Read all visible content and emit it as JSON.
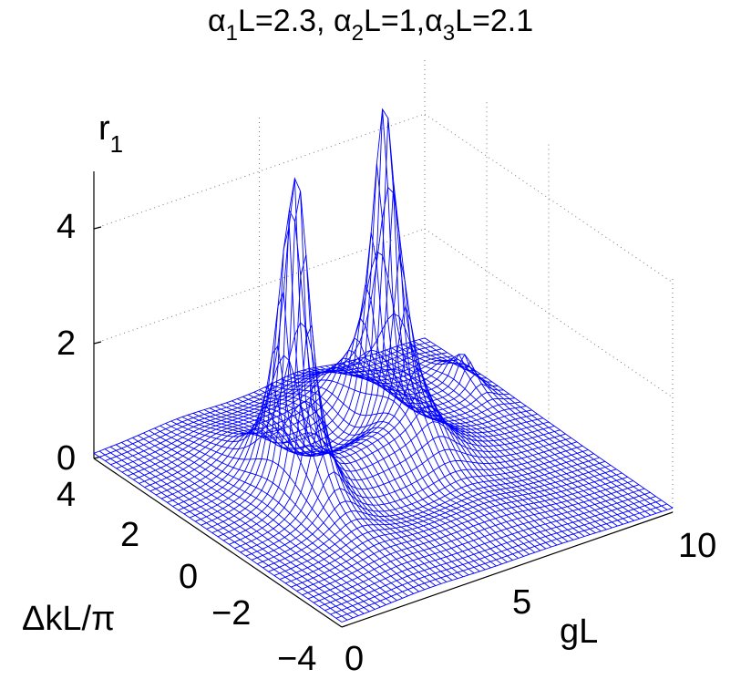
{
  "chart_data": {
    "type": "surface-mesh",
    "title_parts": [
      "α",
      "1",
      "L=2.3, ",
      "α",
      "2",
      "L=1,",
      "α",
      "3",
      "L=2.1"
    ],
    "zlabel_parts": [
      "r",
      "1"
    ],
    "xlabel": "gL",
    "ylabel": "ΔkL/π",
    "xlim": [
      0,
      10
    ],
    "ylim": [
      -4,
      4
    ],
    "zlim": [
      0,
      5
    ],
    "xticks": [
      "0",
      "5",
      "10"
    ],
    "yticks": [
      "−4",
      "−2",
      "0",
      "2",
      "4"
    ],
    "zticks": [
      "0",
      "2",
      "4"
    ],
    "grid": true,
    "mesh_color": "#0000ff",
    "peaks": [
      {
        "gL": 2.6,
        "dkL_over_pi": 0.3,
        "height": 6.0
      },
      {
        "gL": 6.2,
        "dkL_over_pi": 1.2,
        "height": 6.0
      },
      {
        "gL": 9.3,
        "dkL_over_pi": 2.0,
        "height": 0.6
      }
    ]
  }
}
